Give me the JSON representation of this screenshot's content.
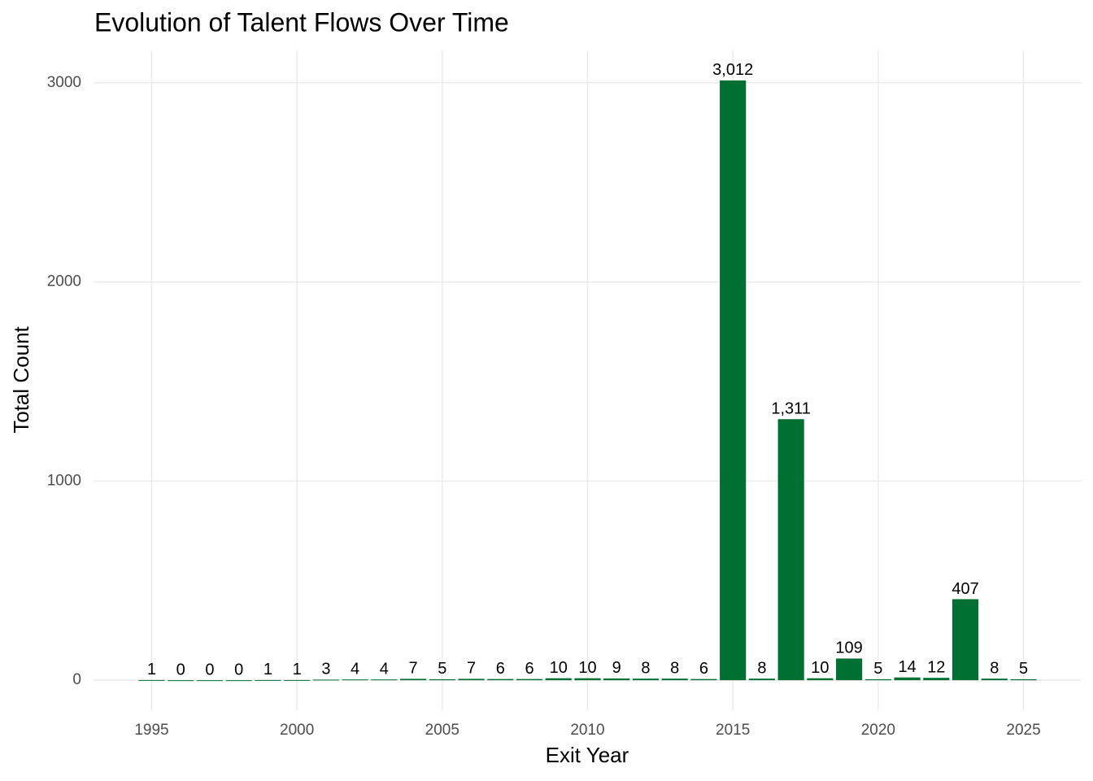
{
  "chart_data": {
    "type": "bar",
    "title": "Evolution of Talent Flows Over Time",
    "x_label": "Exit Year",
    "y_label": "Total Count",
    "x": [
      1995,
      1996,
      1997,
      1998,
      1999,
      2000,
      2001,
      2002,
      2003,
      2004,
      2005,
      2006,
      2007,
      2008,
      2009,
      2010,
      2011,
      2012,
      2013,
      2014,
      2015,
      2016,
      2017,
      2018,
      2019,
      2020,
      2021,
      2022,
      2023,
      2024,
      2025
    ],
    "values": [
      1,
      0,
      0,
      0,
      1,
      1,
      3,
      4,
      4,
      7,
      5,
      7,
      6,
      6,
      10,
      10,
      9,
      8,
      8,
      6,
      3012,
      8,
      1311,
      10,
      109,
      5,
      14,
      12,
      407,
      8,
      5
    ],
    "value_labels": [
      "1",
      "0",
      "0",
      "0",
      "1",
      "1",
      "3",
      "4",
      "4",
      "7",
      "5",
      "7",
      "6",
      "6",
      "10",
      "10",
      "9",
      "8",
      "8",
      "6",
      "3,012",
      "8",
      "1,311",
      "10",
      "109",
      "5",
      "14",
      "12",
      "407",
      "8",
      "5"
    ],
    "color": "#006f32",
    "xlim": [
      1993.0,
      2027.0
    ],
    "xticks": [
      1995,
      2000,
      2005,
      2010,
      2015,
      2020,
      2025
    ],
    "ylim": [
      -150.6,
      3162.6
    ],
    "yticks": [
      0,
      1000,
      2000,
      3000
    ],
    "grid": true
  }
}
